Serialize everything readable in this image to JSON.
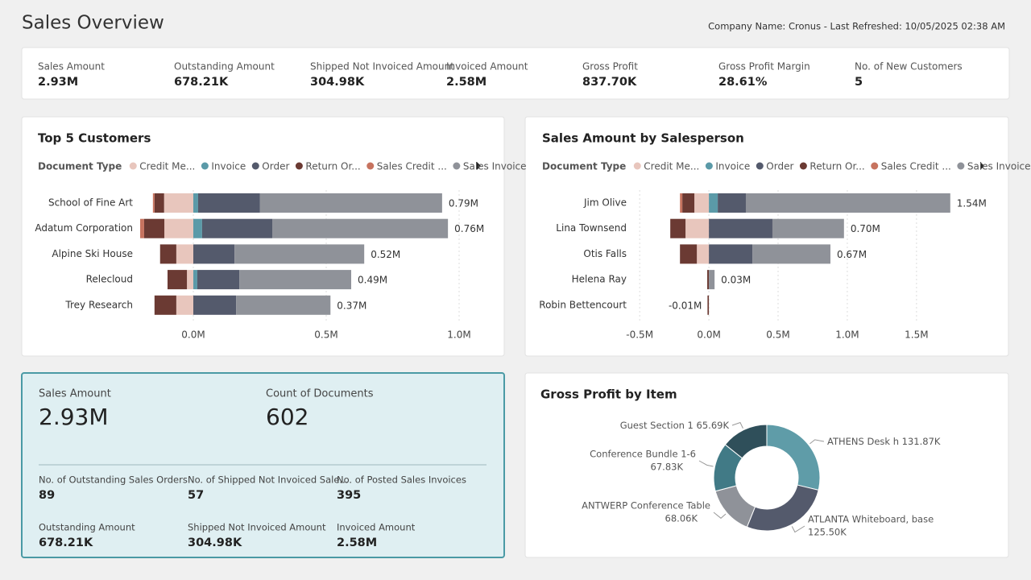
{
  "header": {
    "title": "Sales Overview",
    "info": "Company Name: Cronus - Last Refreshed: 10/05/2025 02:38 AM"
  },
  "kpis": [
    {
      "label": "Sales Amount",
      "value": "2.93M"
    },
    {
      "label": "Outstanding Amount",
      "value": "678.21K"
    },
    {
      "label": "Shipped Not Invoiced Amount",
      "value": "304.98K"
    },
    {
      "label": "Invoiced Amount",
      "value": "2.58M"
    },
    {
      "label": "Gross Profit",
      "value": "837.70K"
    },
    {
      "label": "Gross Profit Margin",
      "value": "28.61%"
    },
    {
      "label": "No. of New Customers",
      "value": "5"
    }
  ],
  "summary_card": {
    "main": [
      {
        "label": "Sales Amount",
        "value": "2.93M"
      },
      {
        "label": "Count of Documents",
        "value": "602"
      }
    ],
    "details": [
      {
        "label": "No. of Outstanding Sales Orders",
        "value": "89"
      },
      {
        "label": "No. of Shipped Not Invoiced Sale...",
        "value": "57"
      },
      {
        "label": "No. of Posted Sales Invoices",
        "value": "395"
      },
      {
        "label": "Outstanding Amount",
        "value": "678.21K"
      },
      {
        "label": "Shipped Not Invoiced Amount",
        "value": "304.98K"
      },
      {
        "label": "Invoiced Amount",
        "value": "2.58M"
      }
    ]
  },
  "chart_data": [
    {
      "type": "bar",
      "orientation": "horizontal",
      "title": "Top 5 Customers",
      "legend_title": "Document Type",
      "categories": [
        "School of Fine Art",
        "Adatum Corporation",
        "Alpine Ski House",
        "Relecloud",
        "Trey Research"
      ],
      "series": [
        {
          "name": "Credit Me...",
          "color": "#e8c6bd",
          "values": [
            -0.11,
            -0.109,
            -0.064,
            -0.024,
            -0.064
          ]
        },
        {
          "name": "Invoice",
          "color": "#5b9aa8",
          "values": [
            0.018,
            0.033,
            0,
            0.015,
            0
          ]
        },
        {
          "name": "Order",
          "color": "#545a6c",
          "values": [
            0.233,
            0.264,
            0.155,
            0.158,
            0.161
          ]
        },
        {
          "name": "Return Or...",
          "color": "#6b3a33",
          "values": [
            -0.036,
            -0.076,
            -0.061,
            -0.073,
            -0.082
          ]
        },
        {
          "name": "Sales Credit ...",
          "color": "#c7735f",
          "values": [
            -0.006,
            -0.015,
            0,
            0,
            0
          ]
        },
        {
          "name": "Sales Invoice",
          "color": "#8f9299",
          "values": [
            0.685,
            0.661,
            0.488,
            0.421,
            0.355
          ]
        }
      ],
      "total_labels": [
        "0.79M",
        "0.76M",
        "0.52M",
        "0.49M",
        "0.37M"
      ],
      "xlim": [
        -0.2,
        1.1
      ],
      "xticks": [
        {
          "value": 0,
          "label": "0.0M"
        },
        {
          "value": 0.5,
          "label": "0.5M"
        },
        {
          "value": 1,
          "label": "1.0M"
        }
      ],
      "grid": true
    },
    {
      "type": "bar",
      "orientation": "horizontal",
      "title": "Sales Amount by Salesperson",
      "legend_title": "Document Type",
      "categories": [
        "Jim Olive",
        "Lina Townsend",
        "Otis Falls",
        "Helena Ray",
        "Robin Bettencourt"
      ],
      "series": [
        {
          "name": "Credit Me...",
          "color": "#e8c6bd",
          "values": [
            -0.105,
            -0.169,
            -0.087,
            0,
            0
          ]
        },
        {
          "name": "Invoice",
          "color": "#5b9aa8",
          "values": [
            0.064,
            0,
            0,
            0,
            0
          ]
        },
        {
          "name": "Order",
          "color": "#545a6c",
          "values": [
            0.203,
            0.459,
            0.314,
            0,
            0
          ]
        },
        {
          "name": "Return Or...",
          "color": "#6b3a33",
          "values": [
            -0.087,
            -0.11,
            -0.122,
            -0.012,
            -0.01
          ]
        },
        {
          "name": "Sales Credit ...",
          "color": "#c7735f",
          "values": [
            -0.017,
            0,
            0,
            0,
            0
          ]
        },
        {
          "name": "Sales Invoice",
          "color": "#8f9299",
          "values": [
            1.477,
            0.517,
            0.564,
            0.041,
            0
          ]
        }
      ],
      "total_labels": [
        "1.54M",
        "0.70M",
        "0.67M",
        "0.03M",
        "-0.01M"
      ],
      "xlim": [
        -0.6,
        1.85
      ],
      "xticks": [
        {
          "value": -0.5,
          "label": "-0.5M"
        },
        {
          "value": 0,
          "label": "0.0M"
        },
        {
          "value": 0.5,
          "label": "0.5M"
        },
        {
          "value": 1,
          "label": "1.0M"
        },
        {
          "value": 1.5,
          "label": "1.5M"
        }
      ],
      "grid": true
    },
    {
      "type": "donut",
      "title": "Gross Profit by Item",
      "categories": [
        "ATHENS Desk h",
        "ATLANTA Whiteboard, base",
        "ANTWERP Conference Table",
        "Conference Bundle 1-6",
        "Guest Section 1"
      ],
      "values": [
        131.87,
        125.5,
        68.06,
        67.83,
        65.69
      ],
      "value_labels": [
        "131.87K",
        "125.50K",
        "68.06K",
        "67.83K",
        "65.69K"
      ],
      "colors": [
        "#5f9ca8",
        "#545a6c",
        "#8f9299",
        "#417a86",
        "#2f4f5a"
      ]
    }
  ]
}
